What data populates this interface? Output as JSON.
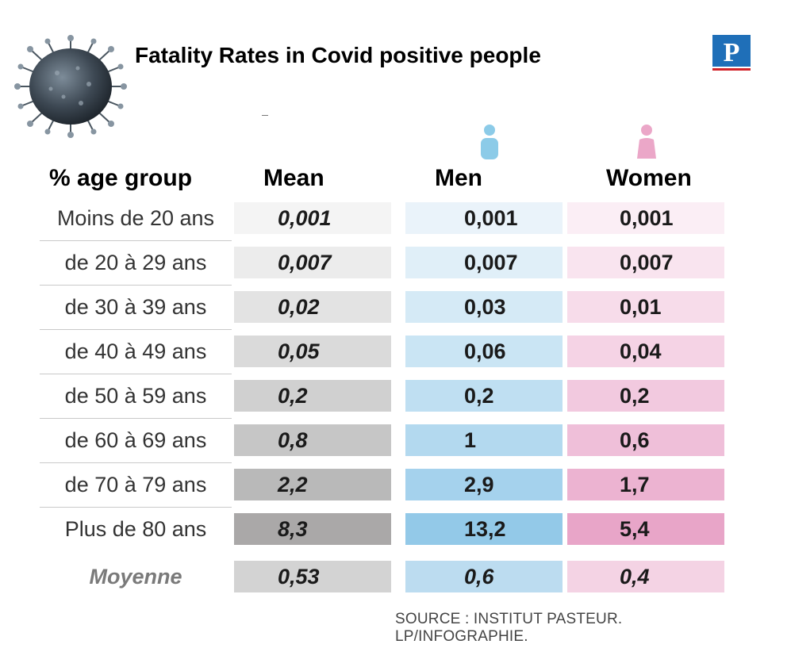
{
  "title": "Fatality Rates in Covid positive people",
  "source": "SOURCE : INSTITUT PASTEUR.  LP/INFOGRAPHIE.",
  "logo_letter": "P",
  "icons": {
    "virus": "coronavirus-illustration",
    "logo": "le-parisien-logo",
    "men": "man-person-icon",
    "women": "woman-person-icon"
  },
  "colors": {
    "men_icon": "#8ccbe8",
    "women_icon": "#eba7c8",
    "logo_blue": "#1f6fb8",
    "logo_red": "#d2232a"
  },
  "chart_data": {
    "type": "table",
    "title": "Fatality Rates in Covid positive people",
    "columns": [
      "% age group",
      "Mean",
      "Men",
      "Women"
    ],
    "rows": [
      {
        "age": "Moins de 20 ans",
        "mean": "0,001",
        "men": "0,001",
        "women": "0,001",
        "mean_bg": "#f4f4f4",
        "men_bg": "#eaf3fa",
        "women_bg": "#fbeef5"
      },
      {
        "age": "de 20 à 29 ans",
        "mean": "0,007",
        "men": "0,007",
        "women": "0,007",
        "mean_bg": "#ececec",
        "men_bg": "#e0eff8",
        "women_bg": "#f9e4ef"
      },
      {
        "age": "de 30 à 39 ans",
        "mean": "0,02",
        "men": "0,03",
        "women": "0,01",
        "mean_bg": "#e3e3e3",
        "men_bg": "#d5eaf6",
        "women_bg": "#f7dcea"
      },
      {
        "age": "de 40 à 49 ans",
        "mean": "0,05",
        "men": "0,06",
        "women": "0,04",
        "mean_bg": "#dadada",
        "men_bg": "#cae5f4",
        "women_bg": "#f5d3e5"
      },
      {
        "age": "de 50 à 59 ans",
        "mean": "0,2",
        "men": "0,2",
        "women": "0,2",
        "mean_bg": "#d0d0d0",
        "men_bg": "#bfdff2",
        "women_bg": "#f2c9df"
      },
      {
        "age": "de 60 à 69 ans",
        "mean": "0,8",
        "men": "1",
        "women": "0,6",
        "mean_bg": "#c6c6c6",
        "men_bg": "#b3d9ef",
        "women_bg": "#efbfd9"
      },
      {
        "age": "de 70 à 79 ans",
        "mean": "2,2",
        "men": "2,9",
        "women": "1,7",
        "mean_bg": "#b9b9b9",
        "men_bg": "#a5d2ed",
        "women_bg": "#ecb3d1"
      },
      {
        "age": "Plus de 80 ans",
        "mean": "8,3",
        "men": "13,2",
        "women": "5,4",
        "mean_bg": "#aaa8a8",
        "men_bg": "#93c9e8",
        "women_bg": "#e8a5c8"
      }
    ],
    "average": {
      "age": "Moyenne",
      "mean": "0,53",
      "men": "0,6",
      "women": "0,4",
      "mean_bg": "#d3d3d3",
      "men_bg": "#bcdcf0",
      "women_bg": "#f4d3e4"
    }
  }
}
